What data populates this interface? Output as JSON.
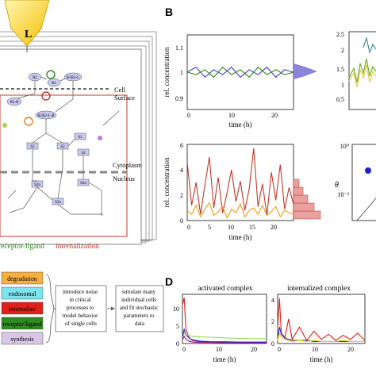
{
  "panel_a": {
    "ligand_label": "L",
    "cell_surface_label": "Cell\nSurface",
    "cytoplasm_label": "Cytoplasm",
    "nucleus_label": "Nucleus",
    "nodes": [
      "R2",
      "R1",
      "R1R2-L",
      "R2-R",
      "R1R2-L-R",
      "S2",
      "S2",
      "S2",
      "S2n",
      "S2n",
      "S2",
      "S2n"
    ],
    "caption_receptor": "receptor-ligand",
    "caption_internalization": "internalization"
  },
  "panel_b": {
    "letter": "B",
    "top_left": {
      "ylabel": "rel. concentration",
      "xlabel": "time (h)",
      "yticks": [
        "0.9",
        "1",
        "1.1"
      ],
      "xticks": [
        "0",
        "10",
        "20"
      ]
    },
    "top_right": {
      "yticks": [
        "0.5",
        "1",
        "1.5",
        "2",
        "2.5"
      ]
    },
    "bottom_left": {
      "ylabel": "rel. concentration",
      "xlabel": "time (h)",
      "yticks": [
        "0",
        "2",
        "4",
        "6"
      ],
      "xticks": [
        "0",
        "5",
        "10",
        "15",
        "20"
      ]
    },
    "bottom_right": {
      "ylabel": "θ",
      "yticks": [
        "10⁰",
        "10⁻²"
      ]
    }
  },
  "panel_c": {
    "legend": [
      {
        "label": "degradation",
        "color": "#f5b041"
      },
      {
        "label": "endosomal",
        "color": "#7fe3f0"
      },
      {
        "label": "internalize",
        "color": "#e0201a"
      },
      {
        "label": "receptor/ligand",
        "color": "#2e8b1e"
      },
      {
        "label": "synthesis",
        "color": "#d7c6e6"
      }
    ],
    "flow": [
      "introduce noise in critical processes to model behavior of single cells",
      "simulate many individual cells and fit stochastic parameters to data"
    ]
  },
  "panel_d": {
    "letter": "D",
    "left": {
      "title": "activated complex",
      "xlabel": "time (h)",
      "yticks": [
        "0",
        "5",
        "10"
      ],
      "xticks": [
        "0",
        "10",
        "20"
      ]
    },
    "right": {
      "title": "internalized complex",
      "xlabel": "time (h)",
      "yticks": [
        "0",
        "2",
        "4"
      ],
      "xticks": [
        "0",
        "10",
        "20"
      ]
    }
  },
  "chart_data": [
    {
      "type": "line",
      "panel": "B-top-left",
      "xlabel": "time (h)",
      "ylabel": "rel. concentration",
      "xlim": [
        0,
        24
      ],
      "ylim": [
        0.85,
        1.15
      ],
      "series": [
        {
          "color": "#4b3cd6",
          "x": [
            0,
            2,
            4,
            6,
            8,
            10,
            12,
            14,
            16,
            18,
            20,
            22,
            24
          ],
          "y": [
            1.0,
            1.02,
            0.98,
            1.01,
            0.99,
            1.02,
            0.98,
            1.01,
            0.99,
            1.02,
            0.98,
            1.01,
            1.0
          ]
        },
        {
          "color": "#2e8b1e",
          "x": [
            0,
            2,
            4,
            6,
            8,
            10,
            12,
            14,
            16,
            18,
            20,
            22,
            24
          ],
          "y": [
            1.0,
            0.99,
            1.01,
            0.98,
            1.02,
            0.99,
            1.01,
            0.98,
            1.02,
            0.99,
            1.01,
            0.99,
            1.0
          ]
        }
      ]
    },
    {
      "type": "line",
      "panel": "B-bottom-left",
      "xlabel": "time (h)",
      "ylabel": "rel. concentration",
      "xlim": [
        0,
        24
      ],
      "ylim": [
        0,
        6
      ],
      "series": [
        {
          "color": "#c0392b",
          "x": [
            0,
            1,
            2,
            3,
            4,
            5,
            6,
            7,
            8,
            9,
            10,
            11,
            12,
            13,
            14,
            15,
            16,
            17,
            18,
            19,
            20,
            21,
            22,
            23,
            24
          ],
          "y": [
            4.6,
            1.2,
            3.0,
            0.5,
            2.8,
            5.0,
            1.0,
            3.4,
            0.6,
            2.2,
            4.0,
            1.5,
            3.1,
            0.8,
            2.5,
            5.7,
            1.1,
            2.9,
            0.4,
            3.8,
            1.6,
            4.4,
            0.9,
            2.6,
            1.3
          ]
        },
        {
          "color": "#f39c12",
          "x": [
            0,
            1,
            2,
            3,
            4,
            5,
            6,
            7,
            8,
            9,
            10,
            11,
            12,
            13,
            14,
            15,
            16,
            17,
            18,
            19,
            20,
            21,
            22,
            23,
            24
          ],
          "y": [
            0.8,
            0.5,
            1.2,
            0.3,
            0.9,
            1.4,
            0.4,
            0.7,
            1.1,
            0.2,
            0.9,
            0.6,
            1.3,
            0.3,
            0.8,
            1.0,
            0.5,
            1.2,
            0.4,
            0.7,
            1.1,
            0.3,
            0.8,
            0.6,
            0.5
          ]
        }
      ]
    },
    {
      "type": "line",
      "panel": "D-left",
      "title": "activated complex",
      "xlabel": "time (h)",
      "xlim": [
        0,
        24
      ],
      "ylim": [
        0,
        14
      ],
      "series": [
        {
          "color": "#e0201a",
          "x": [
            0,
            0.5,
            1,
            2,
            3,
            5,
            8,
            12,
            16,
            20,
            24
          ],
          "y": [
            11,
            13,
            4,
            1.5,
            0.8,
            0.5,
            0.4,
            0.4,
            0.3,
            0.3,
            0.3
          ]
        },
        {
          "color": "#1f1fd0",
          "x": [
            0,
            0.5,
            1,
            2,
            3,
            5,
            8,
            12,
            16,
            20,
            24
          ],
          "y": [
            2,
            4,
            2.5,
            1.5,
            1.0,
            0.7,
            0.5,
            0.5,
            0.4,
            0.4,
            0.4
          ]
        },
        {
          "color": "#8fe05a",
          "x": [
            0,
            0.5,
            1,
            2,
            3,
            5,
            8,
            12,
            16,
            20,
            24
          ],
          "y": [
            1,
            3,
            2.6,
            2.2,
            2.0,
            1.9,
            1.8,
            1.6,
            1.5,
            1.4,
            1.4
          ]
        },
        {
          "color": "#8a1a8a",
          "x": [
            0,
            0.5,
            1,
            2,
            3,
            5,
            8,
            12,
            16,
            20,
            24
          ],
          "y": [
            1,
            2,
            1.2,
            0.6,
            0.4,
            0.3,
            0.3,
            0.2,
            0.2,
            0.2,
            0.2
          ]
        }
      ]
    },
    {
      "type": "line",
      "panel": "D-right",
      "title": "internalized complex",
      "xlabel": "time (h)",
      "xlim": [
        0,
        24
      ],
      "ylim": [
        0,
        4.8
      ],
      "series": [
        {
          "color": "#e0201a",
          "x": [
            0,
            0.5,
            1,
            2,
            3,
            4,
            6,
            8,
            10,
            12,
            14,
            16,
            18,
            20,
            22,
            24
          ],
          "y": [
            1.5,
            4.4,
            1.0,
            0.6,
            2.4,
            0.4,
            1.6,
            0.3,
            1.2,
            0.4,
            0.9,
            0.3,
            0.8,
            0.4,
            1.0,
            0.3
          ]
        },
        {
          "color": "#1f1fd0",
          "x": [
            0,
            0.5,
            1,
            2,
            3,
            4,
            6,
            8,
            10,
            12,
            14,
            16,
            18,
            20,
            22,
            24
          ],
          "y": [
            0.5,
            1.6,
            0.9,
            0.5,
            0.4,
            0.3,
            0.3,
            0.3,
            0.2,
            0.2,
            0.2,
            0.2,
            0.2,
            0.2,
            0.2,
            0.2
          ]
        },
        {
          "color": "#f5d000",
          "x": [
            0,
            0.5,
            1,
            2,
            3,
            4,
            6,
            8,
            10,
            12,
            14,
            16,
            18,
            20,
            22,
            24
          ],
          "y": [
            0.3,
            1.0,
            0.6,
            0.4,
            0.3,
            0.2,
            0.3,
            0.2,
            0.3,
            0.2,
            0.2,
            0.2,
            0.3,
            0.2,
            0.2,
            0.2
          ]
        }
      ]
    }
  ]
}
